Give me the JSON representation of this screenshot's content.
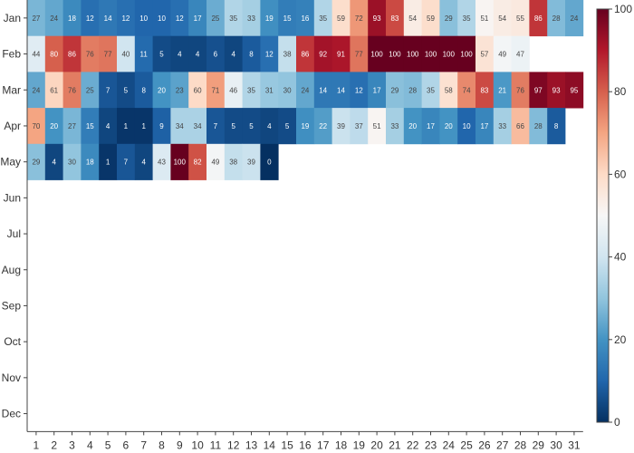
{
  "chart_data": {
    "type": "heatmap",
    "title": "",
    "xlabel": "",
    "ylabel": "",
    "x": [
      1,
      2,
      3,
      4,
      5,
      6,
      7,
      8,
      9,
      10,
      11,
      12,
      13,
      14,
      15,
      16,
      17,
      18,
      19,
      20,
      21,
      22,
      23,
      24,
      25,
      26,
      27,
      28,
      29,
      30,
      31
    ],
    "x_tick_labels": [
      "1",
      "2",
      "3",
      "4",
      "5",
      "6",
      "7",
      "8",
      "9",
      "10",
      "11",
      "12",
      "13",
      "14",
      "15",
      "16",
      "17",
      "18",
      "19",
      "20",
      "21",
      "22",
      "23",
      "24",
      "25",
      "26",
      "27",
      "28",
      "29",
      "30",
      "31"
    ],
    "y": [
      "Jan",
      "Feb",
      "Mar",
      "Apr",
      "May",
      "Jun",
      "Jul",
      "Aug",
      "Sep",
      "Oct",
      "Nov",
      "Dec"
    ],
    "z": [
      [
        27,
        24,
        18,
        12,
        14,
        12,
        10,
        10,
        12,
        17,
        25,
        35,
        33,
        19,
        15,
        16,
        35,
        59,
        72,
        93,
        83,
        54,
        59,
        29,
        35,
        51,
        54,
        55,
        86,
        28,
        24
      ],
      [
        44,
        80,
        86,
        76,
        77,
        40,
        11,
        5,
        4,
        4,
        6,
        4,
        8,
        12,
        38,
        86,
        92,
        91,
        77,
        100,
        100,
        100,
        100,
        100,
        100,
        57,
        49,
        47,
        null,
        null,
        null
      ],
      [
        24,
        61,
        76,
        25,
        7,
        5,
        8,
        20,
        23,
        60,
        71,
        46,
        35,
        31,
        30,
        24,
        14,
        14,
        12,
        17,
        29,
        28,
        35,
        58,
        74,
        83,
        21,
        76,
        97,
        93,
        95
      ],
      [
        70,
        20,
        27,
        15,
        4,
        1,
        1,
        9,
        34,
        34,
        7,
        5,
        5,
        4,
        5,
        19,
        22,
        39,
        37,
        51,
        33,
        20,
        17,
        20,
        10,
        17,
        33,
        66,
        28,
        8,
        null
      ],
      [
        29,
        4,
        30,
        18,
        1,
        7,
        4,
        43,
        100,
        82,
        49,
        38,
        39,
        0,
        null,
        null,
        null,
        null,
        null,
        null,
        null,
        null,
        null,
        null,
        null,
        null,
        null,
        null,
        null,
        null,
        null
      ],
      [
        null,
        null,
        null,
        null,
        null,
        null,
        null,
        null,
        null,
        null,
        null,
        null,
        null,
        null,
        null,
        null,
        null,
        null,
        null,
        null,
        null,
        null,
        null,
        null,
        null,
        null,
        null,
        null,
        null,
        null,
        null
      ],
      [
        null,
        null,
        null,
        null,
        null,
        null,
        null,
        null,
        null,
        null,
        null,
        null,
        null,
        null,
        null,
        null,
        null,
        null,
        null,
        null,
        null,
        null,
        null,
        null,
        null,
        null,
        null,
        null,
        null,
        null,
        null
      ],
      [
        null,
        null,
        null,
        null,
        null,
        null,
        null,
        null,
        null,
        null,
        null,
        null,
        null,
        null,
        null,
        null,
        null,
        null,
        null,
        null,
        null,
        null,
        null,
        null,
        null,
        null,
        null,
        null,
        null,
        null,
        null
      ],
      [
        null,
        null,
        null,
        null,
        null,
        null,
        null,
        null,
        null,
        null,
        null,
        null,
        null,
        null,
        null,
        null,
        null,
        null,
        null,
        null,
        null,
        null,
        null,
        null,
        null,
        null,
        null,
        null,
        null,
        null,
        null
      ],
      [
        null,
        null,
        null,
        null,
        null,
        null,
        null,
        null,
        null,
        null,
        null,
        null,
        null,
        null,
        null,
        null,
        null,
        null,
        null,
        null,
        null,
        null,
        null,
        null,
        null,
        null,
        null,
        null,
        null,
        null,
        null
      ],
      [
        null,
        null,
        null,
        null,
        null,
        null,
        null,
        null,
        null,
        null,
        null,
        null,
        null,
        null,
        null,
        null,
        null,
        null,
        null,
        null,
        null,
        null,
        null,
        null,
        null,
        null,
        null,
        null,
        null,
        null,
        null
      ],
      [
        null,
        null,
        null,
        null,
        null,
        null,
        null,
        null,
        null,
        null,
        null,
        null,
        null,
        null,
        null,
        null,
        null,
        null,
        null,
        null,
        null,
        null,
        null,
        null,
        null,
        null,
        null,
        null,
        null,
        null,
        null
      ]
    ],
    "zlim": [
      0,
      100
    ],
    "colorscale": "RdBu (reversed: 0 = dark blue, 100 = dark red)",
    "colorbar_ticks": [
      0,
      20,
      40,
      60,
      80,
      100
    ],
    "show_cell_labels": true,
    "grid": false,
    "legend": "colorbar on right"
  }
}
